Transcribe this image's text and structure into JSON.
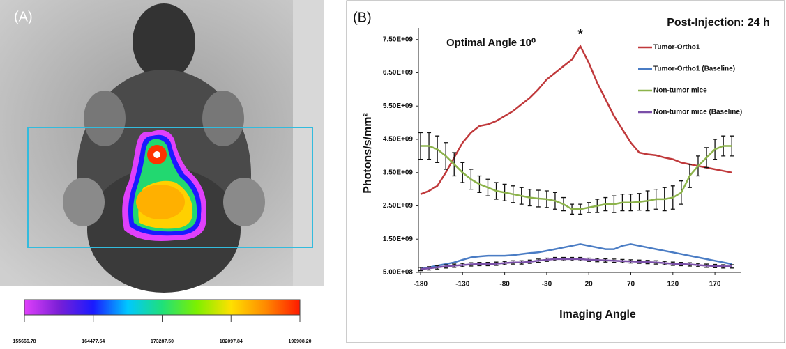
{
  "chart_data": [
    {
      "type": "image-colorbar",
      "panel_label": "(A)",
      "colormap": [
        "#e040fb",
        "#7a1fd6",
        "#1a1aff",
        "#00c8ff",
        "#1fe07a",
        "#7cf000",
        "#ffe000",
        "#ff8a00",
        "#ff1a00"
      ],
      "xlim": [
        155666.78,
        190908.2
      ],
      "xticks": [
        155666.78,
        164477.54,
        {
          "value": 173287.5,
          "label": "173287.50"
        },
        182097.84,
        {
          "value": 190908.2,
          "label": "190908.20"
        }
      ]
    },
    {
      "type": "line",
      "panel_label": "(B)",
      "title": "Post-Injection: 24 h",
      "annotation": "Optimal Angle 10⁰",
      "marker_label": "*",
      "x_label": "Imaging Angle",
      "y_label": "Photons/s/mm²",
      "legend": "top-right",
      "x": [
        -180,
        -170,
        -160,
        -150,
        -140,
        -130,
        -120,
        -110,
        -100,
        -90,
        -80,
        -70,
        -60,
        -50,
        -40,
        -30,
        -20,
        -10,
        0,
        10,
        20,
        30,
        40,
        50,
        60,
        70,
        80,
        90,
        100,
        110,
        120,
        130,
        140,
        150,
        160,
        170,
        180,
        190
      ],
      "xlim": [
        -180,
        200
      ],
      "xticks": [
        -180,
        -130,
        -80,
        -30,
        20,
        70,
        120,
        170
      ],
      "ylim": [
        500000000,
        7850000000
      ],
      "yticks": [
        {
          "value": 500000000,
          "label": "5.00E+08"
        },
        {
          "value": 1500000000,
          "label": "1.50E+09"
        },
        {
          "value": 2500000000,
          "label": "2.50E+09"
        },
        {
          "value": 3500000000,
          "label": "3.50E+09"
        },
        {
          "value": 4500000000,
          "label": "4.50E+09"
        },
        {
          "value": 5500000000,
          "label": "5.50E+09"
        },
        {
          "value": 6500000000,
          "label": "6.50E+09"
        },
        {
          "value": 7500000000,
          "label": "7.50E+09"
        }
      ],
      "series": [
        {
          "name": "Tumor-Ortho1",
          "color": "#c0393b",
          "values": [
            2850000000,
            2950000000,
            3100000000,
            3500000000,
            3950000000,
            4400000000,
            4700000000,
            4900000000,
            4950000000,
            5050000000,
            5200000000,
            5350000000,
            5550000000,
            5750000000,
            6000000000,
            6300000000,
            6500000000,
            6700000000,
            6900000000,
            7300000000,
            6800000000,
            6200000000,
            5700000000,
            5200000000,
            4800000000,
            4400000000,
            4100000000,
            4050000000,
            4020000000,
            3950000000,
            3900000000,
            3800000000,
            3750000000,
            3700000000,
            3650000000,
            3600000000,
            3550000000,
            3500000000
          ]
        },
        {
          "name": "Tumor-Ortho1 (Baseline)",
          "color": "#4a7cc4",
          "values": [
            600000000,
            650000000,
            700000000,
            750000000,
            800000000,
            880000000,
            950000000,
            980000000,
            1000000000,
            1000000000,
            1000000000,
            1020000000,
            1050000000,
            1080000000,
            1100000000,
            1150000000,
            1200000000,
            1250000000,
            1300000000,
            1350000000,
            1300000000,
            1250000000,
            1200000000,
            1200000000,
            1300000000,
            1350000000,
            1300000000,
            1250000000,
            1200000000,
            1150000000,
            1100000000,
            1050000000,
            1000000000,
            950000000,
            900000000,
            850000000,
            800000000,
            750000000
          ]
        },
        {
          "name": "Non-tumor mice",
          "color": "#8cb34a",
          "values": [
            4300000000,
            4300000000,
            4200000000,
            4000000000,
            3750000000,
            3500000000,
            3300000000,
            3150000000,
            3050000000,
            2950000000,
            2900000000,
            2850000000,
            2800000000,
            2750000000,
            2720000000,
            2700000000,
            2650000000,
            2550000000,
            2400000000,
            2400000000,
            2450000000,
            2500000000,
            2550000000,
            2550000000,
            2600000000,
            2600000000,
            2620000000,
            2650000000,
            2700000000,
            2700000000,
            2750000000,
            2900000000,
            3400000000,
            3700000000,
            3950000000,
            4200000000,
            4300000000,
            4300000000
          ],
          "errors": [
            400000000,
            400000000,
            400000000,
            400000000,
            350000000,
            300000000,
            300000000,
            250000000,
            250000000,
            250000000,
            250000000,
            250000000,
            250000000,
            250000000,
            250000000,
            250000000,
            250000000,
            200000000,
            150000000,
            150000000,
            150000000,
            200000000,
            200000000,
            250000000,
            250000000,
            250000000,
            250000000,
            300000000,
            300000000,
            350000000,
            350000000,
            350000000,
            350000000,
            300000000,
            300000000,
            300000000,
            300000000,
            300000000
          ]
        },
        {
          "name": "Non-tumor mice (Baseline)",
          "color": "#7a4fa8",
          "values": [
            600000000,
            620000000,
            650000000,
            680000000,
            700000000,
            720000000,
            740000000,
            750000000,
            750000000,
            760000000,
            780000000,
            800000000,
            800000000,
            820000000,
            850000000,
            880000000,
            900000000,
            900000000,
            900000000,
            900000000,
            880000000,
            870000000,
            860000000,
            850000000,
            840000000,
            830000000,
            820000000,
            810000000,
            800000000,
            780000000,
            760000000,
            750000000,
            740000000,
            720000000,
            700000000,
            690000000,
            680000000,
            680000000
          ],
          "errors": [
            50000000,
            50000000,
            50000000,
            50000000,
            50000000,
            50000000,
            50000000,
            50000000,
            50000000,
            50000000,
            50000000,
            50000000,
            50000000,
            50000000,
            50000000,
            50000000,
            50000000,
            50000000,
            50000000,
            50000000,
            50000000,
            50000000,
            50000000,
            50000000,
            50000000,
            50000000,
            50000000,
            50000000,
            50000000,
            50000000,
            50000000,
            50000000,
            50000000,
            50000000,
            50000000,
            50000000,
            50000000,
            50000000
          ]
        }
      ]
    }
  ]
}
